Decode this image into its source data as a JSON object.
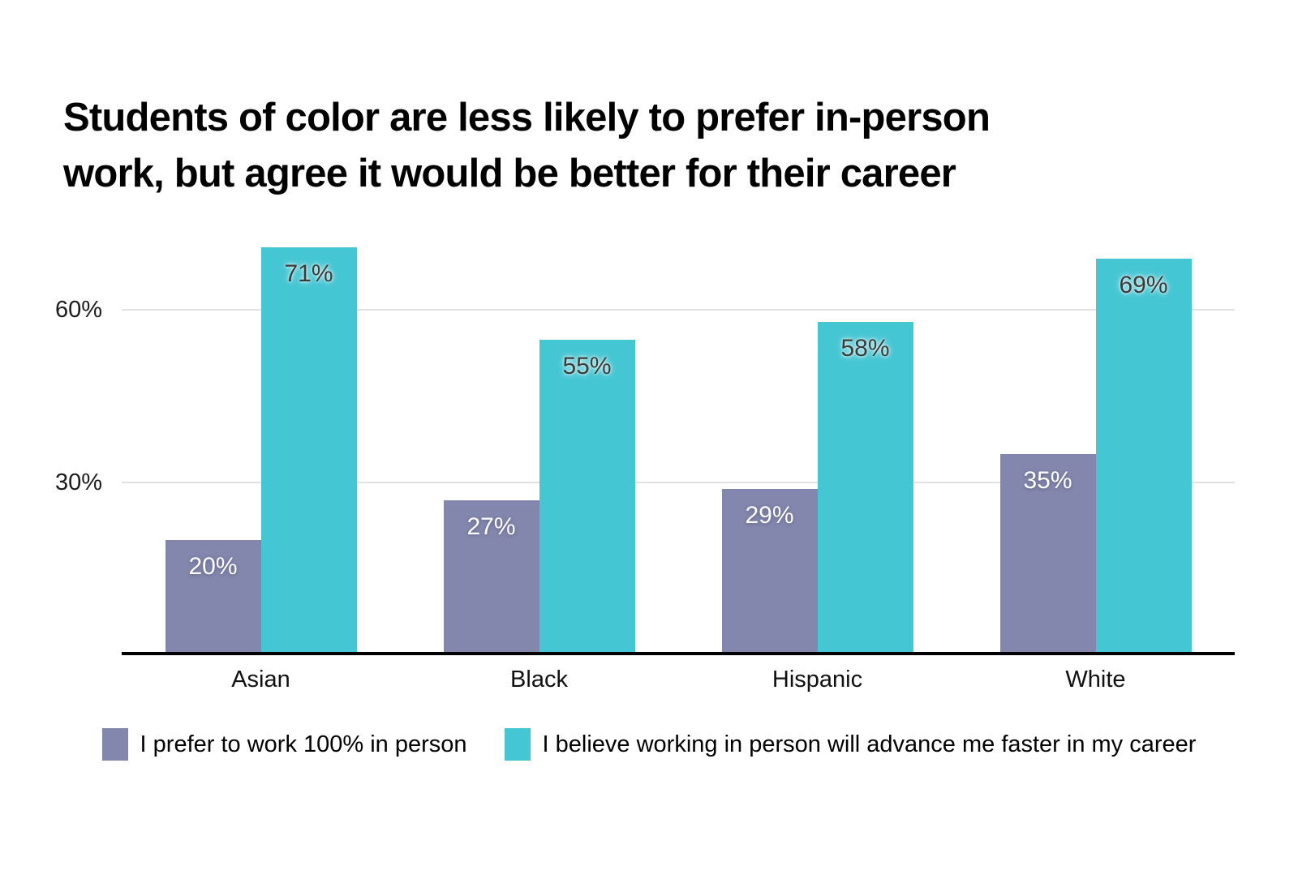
{
  "chart_data": {
    "type": "bar",
    "title": "Students of color are less likely to prefer in-person work, but agree it would be better for their career",
    "title_lines": [
      "Students of color are less likely to prefer in-person",
      "work, but agree it would be better for their career"
    ],
    "categories": [
      "Asian",
      "Black",
      "Hispanic",
      "White"
    ],
    "series": [
      {
        "name": "I prefer to work 100% in person",
        "color": "#8487ad",
        "values": [
          20,
          27,
          29,
          35
        ],
        "data_labels": [
          "20%",
          "27%",
          "29%",
          "35%"
        ]
      },
      {
        "name": "I believe working in person will advance me faster in my career",
        "color": "#45c6d3",
        "values": [
          71,
          55,
          58,
          69
        ],
        "data_labels": [
          "71%",
          "55%",
          "58%",
          "69%"
        ]
      }
    ],
    "xlabel": "",
    "ylabel": "",
    "ylim": [
      0,
      75
    ],
    "yticks": [
      {
        "value": 30,
        "label": "30%"
      },
      {
        "value": 60,
        "label": "60%"
      }
    ],
    "grid": "horizontal-only",
    "legend_position": "bottom",
    "data_labels_position": "inside-top"
  },
  "colors": {
    "background": "#ffffff",
    "title_text": "#000000",
    "axis_line": "#000000",
    "gridline": "#e2e2e2",
    "tick_text": "#1c1c1c",
    "series_purple": "#8487ad",
    "series_teal": "#45c6d3",
    "bar_label_on_teal": "#3b3b3b",
    "bar_label_on_purple": "#ffffff"
  }
}
